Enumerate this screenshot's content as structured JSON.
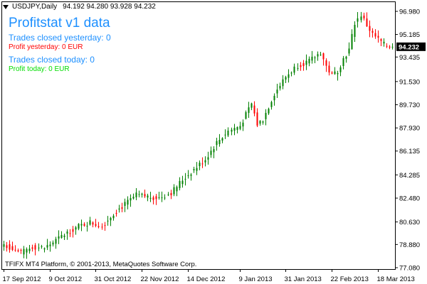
{
  "window": {
    "symbol_label": "USDJPY,Daily",
    "ohlc_label": "94.192 94.280 93.928 94.232",
    "collapse_icon": "triangle-down-icon"
  },
  "stats": {
    "title": "Profitstat v1 data",
    "trades_yesterday": "Trades closed yesterday: 0",
    "profit_yesterday": "Profit yesterday: 0 EUR",
    "trades_today": "Trades closed today: 0",
    "profit_today": "Profit today: 0 EUR"
  },
  "footer": {
    "copyright": "TFIFX MT4 Platform, © 2001-2013, MetaQuotes Software Corp."
  },
  "colors": {
    "bull": "#008000",
    "bear": "#ff0000",
    "title_blue": "#1e90ff",
    "profit_today_green": "#00dd00",
    "price_tag_bg": "#000000",
    "price_tag_text": "#ffffff"
  },
  "chart_data": {
    "type": "candlestick",
    "symbol": "USDJPY",
    "timeframe": "Daily",
    "last_price": "94.232",
    "y_ticks": [
      "96.980",
      "95.185",
      "93.435",
      "91.530",
      "89.730",
      "87.930",
      "86.135",
      "84.285",
      "82.480",
      "80.630",
      "78.880",
      "77.080"
    ],
    "ylim": [
      77.08,
      96.98
    ],
    "x_ticks": [
      "17 Sep 2012",
      "9 Oct 2012",
      "31 Oct 2012",
      "22 Nov 2012",
      "14 Dec 2012",
      "9 Jan 2013",
      "31 Jan 2013",
      "22 Feb 2013",
      "18 Mar 2013"
    ],
    "x_tick_bar_index": [
      0,
      16,
      32,
      48,
      64,
      82,
      98,
      114,
      130
    ],
    "anchors": [
      [
        0,
        78.9
      ],
      [
        6,
        78.2
      ],
      [
        10,
        78.7
      ],
      [
        14,
        78.6
      ],
      [
        18,
        79.2
      ],
      [
        22,
        79.8
      ],
      [
        26,
        80.3
      ],
      [
        30,
        80.6
      ],
      [
        34,
        80.3
      ],
      [
        38,
        81.3
      ],
      [
        42,
        82.0
      ],
      [
        46,
        82.7
      ],
      [
        50,
        82.6
      ],
      [
        54,
        82.5
      ],
      [
        58,
        82.9
      ],
      [
        62,
        83.9
      ],
      [
        66,
        84.7
      ],
      [
        70,
        85.5
      ],
      [
        74,
        86.8
      ],
      [
        78,
        87.7
      ],
      [
        82,
        88.1
      ],
      [
        86,
        89.8
      ],
      [
        88,
        88.2
      ],
      [
        90,
        88.6
      ],
      [
        94,
        90.6
      ],
      [
        98,
        91.9
      ],
      [
        102,
        92.8
      ],
      [
        106,
        93.1
      ],
      [
        110,
        93.8
      ],
      [
        112,
        92.7
      ],
      [
        114,
        92.0
      ],
      [
        116,
        92.4
      ],
      [
        118,
        93.3
      ],
      [
        120,
        94.0
      ],
      [
        122,
        96.1
      ],
      [
        124,
        96.7
      ],
      [
        126,
        95.9
      ],
      [
        128,
        95.2
      ],
      [
        130,
        94.8
      ],
      [
        132,
        94.4
      ],
      [
        135,
        94.232
      ]
    ]
  }
}
